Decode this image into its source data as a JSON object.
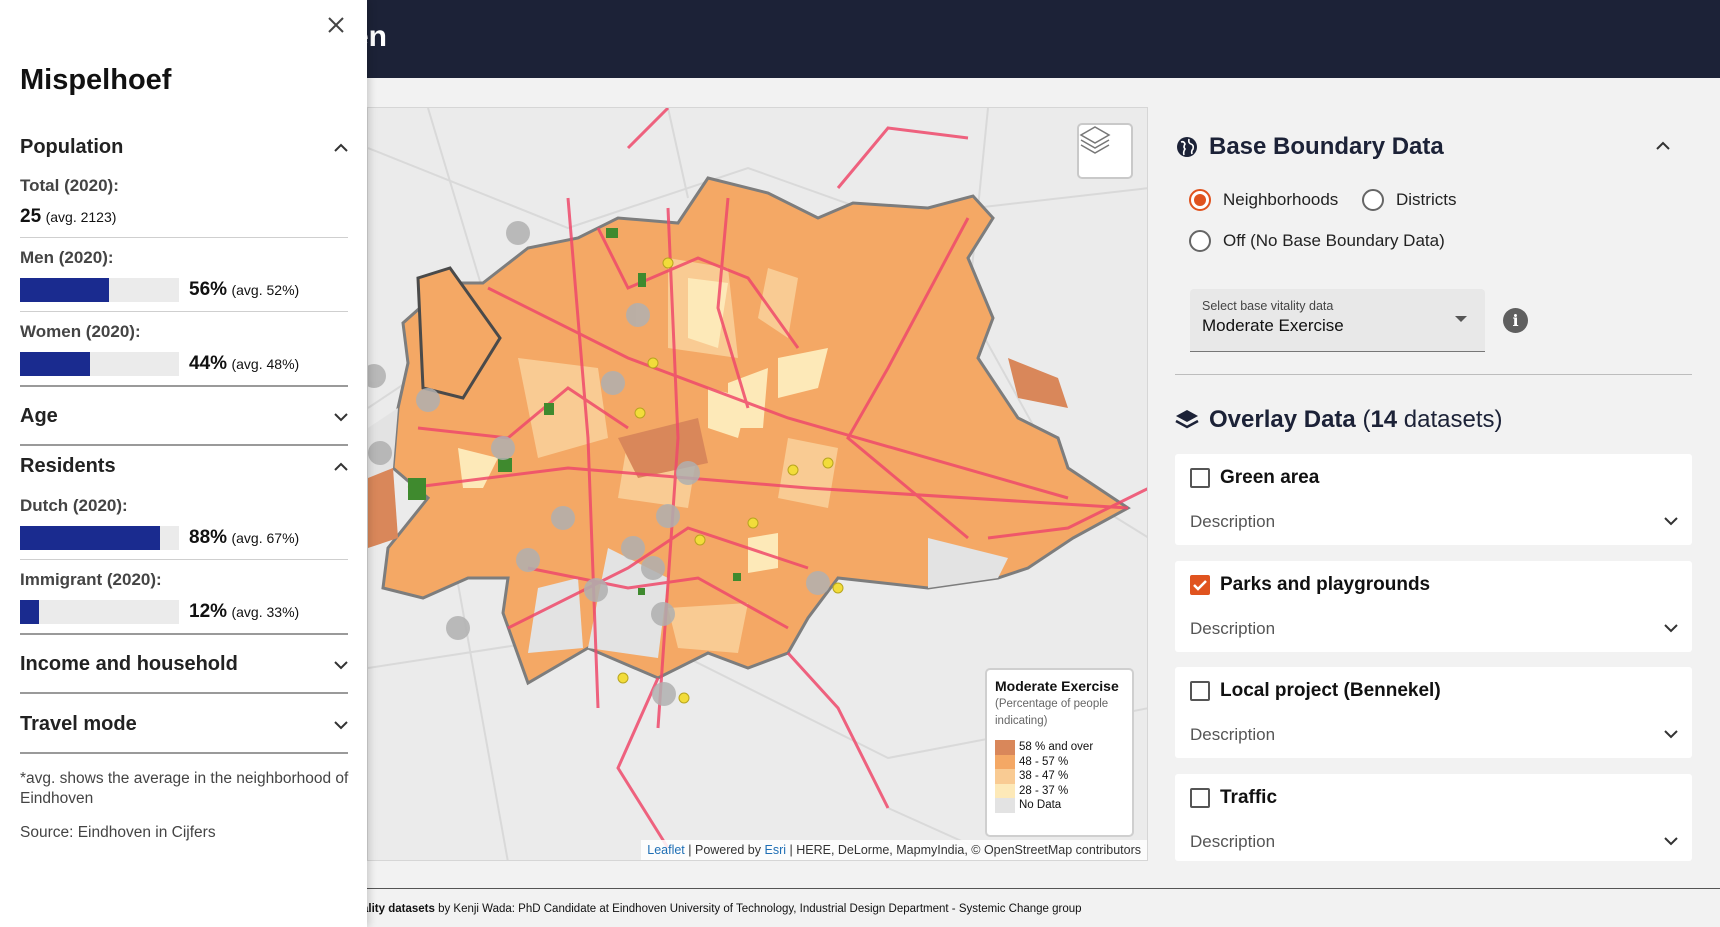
{
  "header": {
    "title_fragment": "en"
  },
  "side_panel": {
    "title": "Mispelhoef",
    "sections": {
      "population": "Population",
      "age": "Age",
      "residents": "Residents",
      "income": "Income and household",
      "travel": "Travel mode"
    },
    "stats": {
      "total": {
        "label": "Total (2020):",
        "value": "25",
        "avg": "(avg. 2123)"
      },
      "men": {
        "label": "Men (2020):",
        "value": "56%",
        "avg": "(avg. 52%)",
        "fraction": 0.56
      },
      "women": {
        "label": "Women (2020):",
        "value": "44%",
        "avg": "(avg. 48%)",
        "fraction": 0.44
      },
      "dutch": {
        "label": "Dutch (2020):",
        "value": "88%",
        "avg": "(avg. 67%)",
        "fraction": 0.88
      },
      "immigrant": {
        "label": "Immigrant (2020):",
        "value": "12%",
        "avg": "(avg. 33%)",
        "fraction": 0.12
      }
    },
    "note": "*avg. shows the average in the neighborhood of Eindhoven",
    "source": "Source: Eindhoven in Cijfers",
    "bar_color": "#1a2b8f"
  },
  "map": {
    "legend": {
      "title": "Moderate Exercise",
      "subtitle": "(Percentage of people indicating)",
      "items": [
        {
          "label": "58 % and over",
          "color": "#d9875a"
        },
        {
          "label": "48 - 57 %",
          "color": "#f4a865"
        },
        {
          "label": "38 - 47 %",
          "color": "#f9cb93"
        },
        {
          "label": "28 - 37 %",
          "color": "#fde9b8"
        },
        {
          "label": "No Data",
          "color": "#e3e3e3"
        }
      ]
    },
    "attribution": {
      "leaflet": "Leaflet",
      "powered": "| Powered by",
      "esri": "Esri",
      "rest": "| HERE, DeLorme, MapmyIndia, © OpenStreetMap contributors"
    }
  },
  "right_panel": {
    "base_title": "Base Boundary Data",
    "radios": {
      "neighborhoods": "Neighborhoods",
      "districts": "Districts",
      "off": "Off (No Base Boundary Data)"
    },
    "select": {
      "label": "Select base vitality data",
      "value": "Moderate Exercise"
    },
    "overlay_title": "Overlay Data",
    "overlay_count": "(14 datasets)",
    "overlay_count_num": "14",
    "cards": [
      {
        "title": "Green area",
        "desc": "Description",
        "checked": false
      },
      {
        "title": "Parks and playgrounds",
        "desc": "Description",
        "checked": true
      },
      {
        "title": "Local project (Bennekel)",
        "desc": "Description",
        "checked": false
      },
      {
        "title": "Traffic",
        "desc": "Description",
        "checked": false
      }
    ],
    "accent": "#e0531f"
  },
  "footer": {
    "bold": "ality datasets",
    "text": " by Kenji Wada: PhD Candidate at Eindhoven University of Technology, Industrial Design Department - Systemic Change group"
  }
}
